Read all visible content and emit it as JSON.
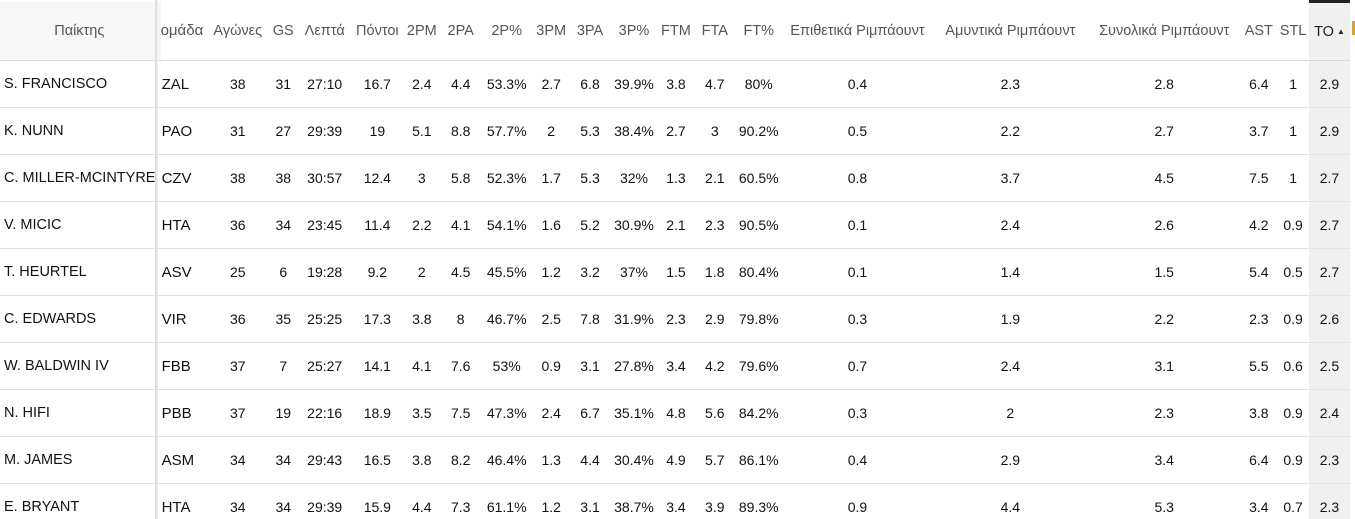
{
  "headers": {
    "player": "Παίκτης",
    "team": "ομάδα",
    "games": "Αγώνες",
    "gs": "GS",
    "minutes": "Λεπτά",
    "points": "Πόντοι",
    "fg2m": "2PM",
    "fg2a": "2PA",
    "fg2pct": "2P%",
    "fg3m": "3PM",
    "fg3a": "3PA",
    "fg3pct": "3P%",
    "ftm": "FTM",
    "fta": "FTA",
    "ftpct": "FT%",
    "oreb": "Επιθετικά Ριμπάουντ",
    "dreb": "Αμυντικά Ριμπάουντ",
    "treb": "Συνολικά Ριμπάουντ",
    "ast": "AST",
    "stl": "STL",
    "to": "TO"
  },
  "sort": {
    "column": "TO",
    "direction": "descending",
    "arrow": "▲"
  },
  "rows": [
    {
      "player": "S. FRANCISCO",
      "team": "ZAL",
      "games": "38",
      "gs": "31",
      "minutes": "27:10",
      "points": "16.7",
      "fg2m": "2.4",
      "fg2a": "4.4",
      "fg2pct": "53.3%",
      "fg3m": "2.7",
      "fg3a": "6.8",
      "fg3pct": "39.9%",
      "ftm": "3.8",
      "fta": "4.7",
      "ftpct": "80%",
      "oreb": "0.4",
      "dreb": "2.3",
      "treb": "2.8",
      "ast": "6.4",
      "stl": "1",
      "to": "2.9"
    },
    {
      "player": "K. NUNN",
      "team": "PAO",
      "games": "31",
      "gs": "27",
      "minutes": "29:39",
      "points": "19",
      "fg2m": "5.1",
      "fg2a": "8.8",
      "fg2pct": "57.7%",
      "fg3m": "2",
      "fg3a": "5.3",
      "fg3pct": "38.4%",
      "ftm": "2.7",
      "fta": "3",
      "ftpct": "90.2%",
      "oreb": "0.5",
      "dreb": "2.2",
      "treb": "2.7",
      "ast": "3.7",
      "stl": "1",
      "to": "2.9"
    },
    {
      "player": "C. MILLER-MCINTYRE",
      "team": "CZV",
      "games": "38",
      "gs": "38",
      "minutes": "30:57",
      "points": "12.4",
      "fg2m": "3",
      "fg2a": "5.8",
      "fg2pct": "52.3%",
      "fg3m": "1.7",
      "fg3a": "5.3",
      "fg3pct": "32%",
      "ftm": "1.3",
      "fta": "2.1",
      "ftpct": "60.5%",
      "oreb": "0.8",
      "dreb": "3.7",
      "treb": "4.5",
      "ast": "7.5",
      "stl": "1",
      "to": "2.7"
    },
    {
      "player": "V. MICIC",
      "team": "HTA",
      "games": "36",
      "gs": "34",
      "minutes": "23:45",
      "points": "11.4",
      "fg2m": "2.2",
      "fg2a": "4.1",
      "fg2pct": "54.1%",
      "fg3m": "1.6",
      "fg3a": "5.2",
      "fg3pct": "30.9%",
      "ftm": "2.1",
      "fta": "2.3",
      "ftpct": "90.5%",
      "oreb": "0.1",
      "dreb": "2.4",
      "treb": "2.6",
      "ast": "4.2",
      "stl": "0.9",
      "to": "2.7"
    },
    {
      "player": "T. HEURTEL",
      "team": "ASV",
      "games": "25",
      "gs": "6",
      "minutes": "19:28",
      "points": "9.2",
      "fg2m": "2",
      "fg2a": "4.5",
      "fg2pct": "45.5%",
      "fg3m": "1.2",
      "fg3a": "3.2",
      "fg3pct": "37%",
      "ftm": "1.5",
      "fta": "1.8",
      "ftpct": "80.4%",
      "oreb": "0.1",
      "dreb": "1.4",
      "treb": "1.5",
      "ast": "5.4",
      "stl": "0.5",
      "to": "2.7"
    },
    {
      "player": "C. EDWARDS",
      "team": "VIR",
      "games": "36",
      "gs": "35",
      "minutes": "25:25",
      "points": "17.3",
      "fg2m": "3.8",
      "fg2a": "8",
      "fg2pct": "46.7%",
      "fg3m": "2.5",
      "fg3a": "7.8",
      "fg3pct": "31.9%",
      "ftm": "2.3",
      "fta": "2.9",
      "ftpct": "79.8%",
      "oreb": "0.3",
      "dreb": "1.9",
      "treb": "2.2",
      "ast": "2.3",
      "stl": "0.9",
      "to": "2.6"
    },
    {
      "player": "W. BALDWIN IV",
      "team": "FBB",
      "games": "37",
      "gs": "7",
      "minutes": "25:27",
      "points": "14.1",
      "fg2m": "4.1",
      "fg2a": "7.6",
      "fg2pct": "53%",
      "fg3m": "0.9",
      "fg3a": "3.1",
      "fg3pct": "27.8%",
      "ftm": "3.4",
      "fta": "4.2",
      "ftpct": "79.6%",
      "oreb": "0.7",
      "dreb": "2.4",
      "treb": "3.1",
      "ast": "5.5",
      "stl": "0.6",
      "to": "2.5"
    },
    {
      "player": "N. HIFI",
      "team": "PBB",
      "games": "37",
      "gs": "19",
      "minutes": "22:16",
      "points": "18.9",
      "fg2m": "3.5",
      "fg2a": "7.5",
      "fg2pct": "47.3%",
      "fg3m": "2.4",
      "fg3a": "6.7",
      "fg3pct": "35.1%",
      "ftm": "4.8",
      "fta": "5.6",
      "ftpct": "84.2%",
      "oreb": "0.3",
      "dreb": "2",
      "treb": "2.3",
      "ast": "3.8",
      "stl": "0.9",
      "to": "2.4"
    },
    {
      "player": "M. JAMES",
      "team": "ASM",
      "games": "34",
      "gs": "34",
      "minutes": "29:43",
      "points": "16.5",
      "fg2m": "3.8",
      "fg2a": "8.2",
      "fg2pct": "46.4%",
      "fg3m": "1.3",
      "fg3a": "4.4",
      "fg3pct": "30.4%",
      "ftm": "4.9",
      "fta": "5.7",
      "ftpct": "86.1%",
      "oreb": "0.4",
      "dreb": "2.9",
      "treb": "3.4",
      "ast": "6.4",
      "stl": "0.9",
      "to": "2.3"
    },
    {
      "player": "E. BRYANT",
      "team": "HTA",
      "games": "34",
      "gs": "34",
      "minutes": "29:39",
      "points": "15.9",
      "fg2m": "4.4",
      "fg2a": "7.3",
      "fg2pct": "61.1%",
      "fg3m": "1.2",
      "fg3a": "3.1",
      "fg3pct": "38.7%",
      "ftm": "3.4",
      "fta": "3.9",
      "ftpct": "89.3%",
      "oreb": "0.9",
      "dreb": "4.4",
      "treb": "5.3",
      "ast": "3.4",
      "stl": "0.7",
      "to": "2.3"
    }
  ]
}
